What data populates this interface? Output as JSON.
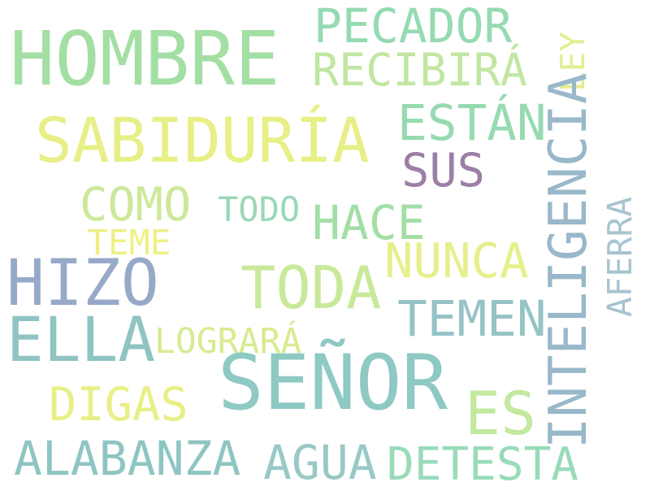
{
  "cloud": {
    "words": [
      {
        "text": "HOMBRE",
        "color": "#a3dfa3"
      },
      {
        "text": "PECADOR",
        "color": "#95dab2"
      },
      {
        "text": "RECIBIRÁ",
        "color": "#c1e6a2"
      },
      {
        "text": "LEY",
        "color": "#e3ee91"
      },
      {
        "text": "SABIDURÍA",
        "color": "#e7ef86"
      },
      {
        "text": "ESTÁN",
        "color": "#96dab0"
      },
      {
        "text": "SUS",
        "color": "#9b7fa6"
      },
      {
        "text": "INTELIGENCIA",
        "color": "#99b8c9"
      },
      {
        "text": "COMO",
        "color": "#cde89a"
      },
      {
        "text": "TODO",
        "color": "#9ad8b8"
      },
      {
        "text": "HACE",
        "color": "#a3dea5"
      },
      {
        "text": "TEME",
        "color": "#eef084"
      },
      {
        "text": "NUNCA",
        "color": "#e6ef8a"
      },
      {
        "text": "AFERRA",
        "color": "#a7c4cf"
      },
      {
        "text": "HIZO",
        "color": "#97a9c8"
      },
      {
        "text": "TODA",
        "color": "#c9e99a"
      },
      {
        "text": "ELLA",
        "color": "#8fc4c2"
      },
      {
        "text": "TEMEN",
        "color": "#96c3c6"
      },
      {
        "text": "LOGRARÁ",
        "color": "#d7eb90"
      },
      {
        "text": "SEÑOR",
        "color": "#8ec9c4"
      },
      {
        "text": "ES",
        "color": "#c2e99e"
      },
      {
        "text": "DIGAS",
        "color": "#e8ef86"
      },
      {
        "text": "ALABANZA",
        "color": "#8ec5c3"
      },
      {
        "text": "AGUA",
        "color": "#98c9c6"
      },
      {
        "text": "DETESTA",
        "color": "#98dbb9"
      }
    ]
  }
}
